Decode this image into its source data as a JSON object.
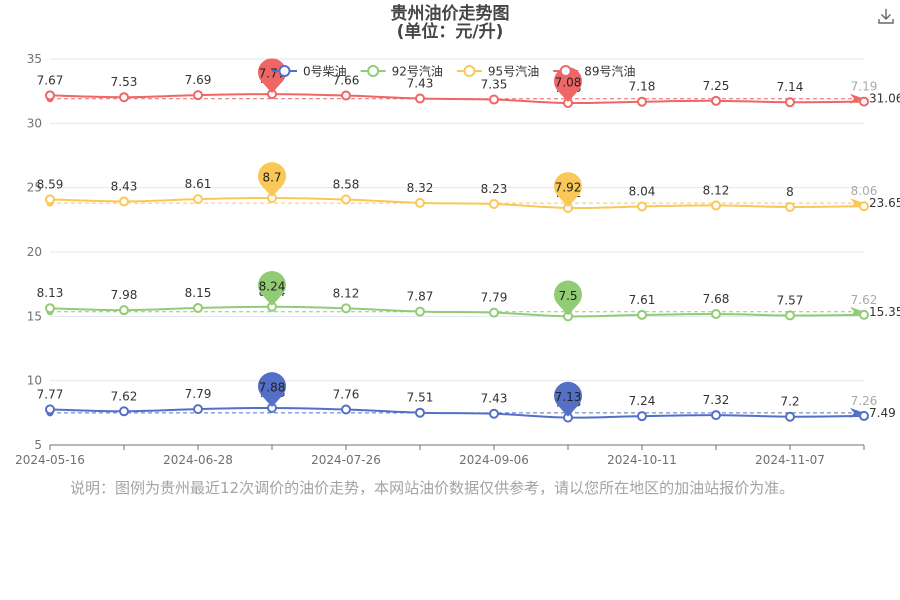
{
  "title": {
    "line1": "贵州油价走势图",
    "line2": "(单位：元/升)"
  },
  "toolbox": {
    "download_icon": "download-icon"
  },
  "note": "说明：图例为贵州最近12次调价的油价走势，本网站油价数据仅供参考，请以您所在地区的加油站报价为准。",
  "chart_data": {
    "type": "line",
    "title": "贵州油价走势图 (单位：元/升)",
    "x_tick_labels": [
      "2024-05-16",
      "2024-06-28",
      "2024-07-26",
      "2024-09-06",
      "2024-10-11",
      "2024-11-07"
    ],
    "x_tick_indices": [
      0,
      2,
      4,
      6,
      8,
      10
    ],
    "y_ticks": [
      5,
      10,
      15,
      20,
      25,
      30,
      35
    ],
    "ylim": [
      5,
      35
    ],
    "grid": true,
    "legend_position": "top-right",
    "point_count": 12,
    "series": [
      {
        "name": "0号柴油",
        "color": "#5470c6",
        "offset": 0,
        "labels": [
          "7.77",
          "7.62",
          "7.79",
          "7.88",
          "7.76",
          "7.51",
          "7.43",
          "7.13",
          "7.24",
          "7.32",
          "7.2",
          "7.26"
        ],
        "values": [
          7.77,
          7.62,
          7.79,
          7.88,
          7.76,
          7.51,
          7.43,
          7.13,
          7.24,
          7.32,
          7.2,
          7.26
        ],
        "max_label": "7.88",
        "max_index": 3,
        "min_label": "7.13",
        "min_index": 7,
        "avg_label": "7.49"
      },
      {
        "name": "92号汽油",
        "color": "#91cc75",
        "offset": 7.5,
        "labels": [
          "8.13",
          "7.98",
          "8.15",
          "8.24",
          "8.12",
          "7.87",
          "7.79",
          "7.5",
          "7.61",
          "7.68",
          "7.57",
          "7.62"
        ],
        "values": [
          8.13,
          7.98,
          8.15,
          8.24,
          8.12,
          7.87,
          7.79,
          7.5,
          7.61,
          7.68,
          7.57,
          7.62
        ],
        "max_label": "8.24",
        "max_index": 3,
        "min_label": "7.5",
        "min_index": 7,
        "avg_label": "15.35"
      },
      {
        "name": "95号汽油",
        "color": "#fac858",
        "offset": 15.5,
        "labels": [
          "8.59",
          "8.43",
          "8.61",
          "8.7",
          "8.58",
          "8.32",
          "8.23",
          "7.92",
          "8.04",
          "8.12",
          "8",
          "8.06"
        ],
        "values": [
          8.59,
          8.43,
          8.61,
          8.7,
          8.58,
          8.32,
          8.23,
          7.92,
          8.04,
          8.12,
          8,
          8.06
        ],
        "max_label": "8.7",
        "max_index": 3,
        "min_label": "7.92",
        "min_index": 7,
        "avg_label": "23.65"
      },
      {
        "name": "89号汽油",
        "color": "#ee6666",
        "offset": 24.5,
        "labels": [
          "7.67",
          "7.53",
          "7.69",
          "7.77",
          "7.66",
          "7.43",
          "7.35",
          "7.08",
          "7.18",
          "7.25",
          "7.14",
          "7.19"
        ],
        "values": [
          7.67,
          7.53,
          7.69,
          7.77,
          7.66,
          7.43,
          7.35,
          7.08,
          7.18,
          7.25,
          7.14,
          7.19
        ],
        "max_label": "7.77",
        "max_index": 3,
        "min_label": "7.08",
        "min_index": 7,
        "avg_label": "31.06"
      }
    ]
  }
}
